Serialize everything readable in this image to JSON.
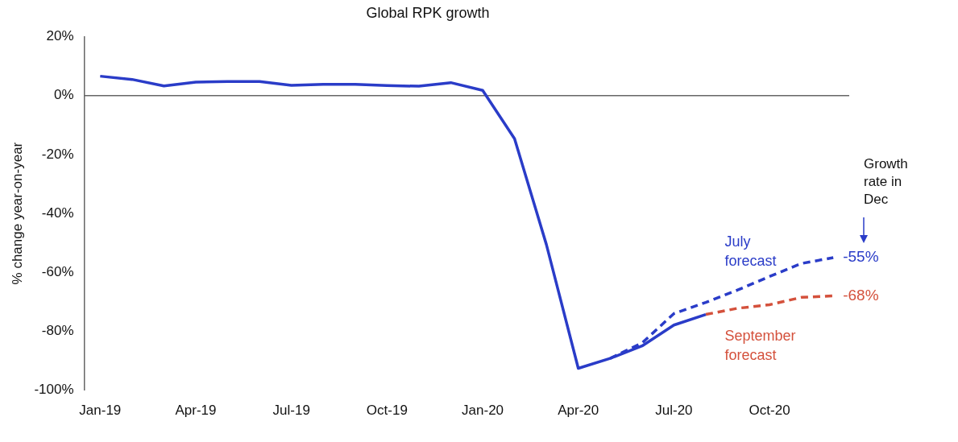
{
  "chart_data": {
    "type": "line",
    "title": "Global RPK growth",
    "ylabel": "% change year-on-year",
    "categories": [
      "Jan-19",
      null,
      null,
      "Apr-19",
      null,
      null,
      "Jul-19",
      null,
      null,
      "Oct-19",
      null,
      null,
      "Jan-20",
      null,
      null,
      "Apr-20",
      null,
      null,
      "Jul-20",
      null,
      null,
      "Oct-20",
      null,
      null
    ],
    "series": [
      {
        "color": "#2a3cc8",
        "line_style": "solid",
        "values": [
          6.6,
          5.5,
          3.3,
          4.6,
          4.8,
          4.8,
          3.5,
          3.8,
          3.8,
          3.4,
          3.2,
          4.4,
          1.8,
          -14.6,
          -50.6,
          -92.6,
          -89.2,
          -85,
          -77.9,
          -74.3,
          null,
          null,
          null,
          null
        ]
      },
      {
        "name": "July forecast",
        "color": "#2a3cc8",
        "line_style": "dashed",
        "values": [
          null,
          null,
          null,
          null,
          null,
          null,
          null,
          null,
          null,
          null,
          null,
          null,
          null,
          null,
          null,
          null,
          -89.2,
          -84,
          -74,
          -70.2,
          -66,
          -61.4,
          -57,
          -55
        ],
        "value_labels": [
          null,
          null,
          null,
          null,
          null,
          null,
          null,
          null,
          null,
          null,
          null,
          null,
          null,
          null,
          null,
          null,
          null,
          null,
          null,
          null,
          null,
          null,
          null,
          "-55%"
        ]
      },
      {
        "name": "September forecast",
        "color": "#d4513c",
        "line_style": "dashed",
        "values": [
          null,
          null,
          null,
          null,
          null,
          null,
          null,
          null,
          null,
          null,
          null,
          null,
          null,
          null,
          null,
          null,
          null,
          null,
          null,
          -74.3,
          -72.2,
          -71,
          -68.5,
          -68
        ],
        "value_labels": [
          null,
          null,
          null,
          null,
          null,
          null,
          null,
          null,
          null,
          null,
          null,
          null,
          null,
          null,
          null,
          null,
          null,
          null,
          null,
          null,
          null,
          null,
          null,
          "-68%"
        ]
      }
    ],
    "ylim": [
      -100,
      20
    ],
    "yticks": [
      {
        "value": -100,
        "label": "-100%"
      },
      {
        "value": -80,
        "label": "-80%"
      },
      {
        "value": -60,
        "label": "-60%"
      },
      {
        "value": -40,
        "label": "-40%"
      },
      {
        "value": -20,
        "label": "-20%"
      },
      {
        "value": 0,
        "label": "0%"
      },
      {
        "value": 20,
        "label": "20%"
      }
    ],
    "ref_lines": [
      {
        "axis": "y",
        "value": 0,
        "color": "#666666",
        "line_style": "solid"
      }
    ],
    "grid": false,
    "legend": false,
    "marker": "none",
    "annotations": [
      "Growth rate in Dec"
    ]
  }
}
